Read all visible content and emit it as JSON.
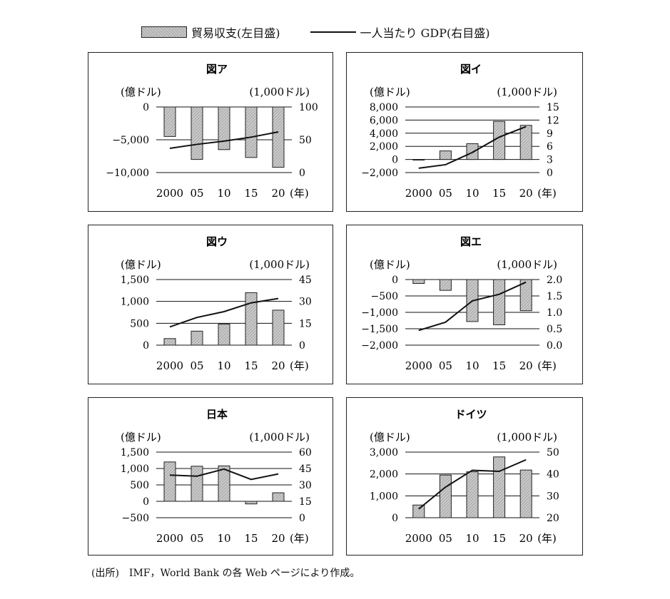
{
  "legend": {
    "bar_label": "貿易収支(左目盛)",
    "line_label": "一人当たり GDP(右目盛)"
  },
  "footnote": "(出所)　IMF，World Bank の各 Web ページにより作成。",
  "colors": {
    "bar_fill": "#c9c9c9",
    "line": "#111111",
    "grid": "#111111"
  },
  "chart_data": [
    {
      "type": "bar",
      "title": "図ア",
      "ylabel": "(億ドル)",
      "y2label": "(1,000ドル)",
      "xunit": "(年)",
      "categories": [
        "2000",
        "05",
        "10",
        "15",
        "20"
      ],
      "ylim": [
        -10000,
        0
      ],
      "yticks": [
        "0",
        "−5,000",
        "−10,000"
      ],
      "ytick_values": [
        0,
        -5000,
        -10000
      ],
      "y2lim": [
        0,
        100
      ],
      "y2ticks": [
        "100",
        "50",
        "0"
      ],
      "y2tick_values": [
        100,
        50,
        0
      ],
      "series": [
        {
          "name": "貿易収支(左目盛)",
          "kind": "bar",
          "axis": "left",
          "values": [
            -4500,
            -8000,
            -6500,
            -7700,
            -9200
          ]
        },
        {
          "name": "一人当たり GDP(右目盛)",
          "kind": "line",
          "axis": "right",
          "values": [
            37,
            43,
            48,
            54,
            62
          ]
        }
      ]
    },
    {
      "type": "bar",
      "title": "図イ",
      "ylabel": "(億ドル)",
      "y2label": "(1,000ドル)",
      "xunit": "(年)",
      "categories": [
        "2000",
        "05",
        "10",
        "15",
        "20"
      ],
      "ylim": [
        -2000,
        8000
      ],
      "yticks": [
        "8,000",
        "6,000",
        "4,000",
        "2,000",
        "0",
        "−2,000"
      ],
      "ytick_values": [
        8000,
        6000,
        4000,
        2000,
        0,
        -2000
      ],
      "y2lim": [
        0,
        15
      ],
      "y2ticks": [
        "15",
        "12",
        "9",
        "6",
        "3",
        "0"
      ],
      "y2tick_values": [
        15,
        12,
        9,
        6,
        3,
        0
      ],
      "series": [
        {
          "name": "貿易収支(左目盛)",
          "kind": "bar",
          "axis": "left",
          "values": [
            -100,
            1300,
            2400,
            5800,
            5200
          ]
        },
        {
          "name": "一人当たり GDP(右目盛)",
          "kind": "line",
          "axis": "right",
          "values": [
            1.0,
            1.8,
            4.6,
            8.1,
            10.5
          ]
        }
      ]
    },
    {
      "type": "bar",
      "title": "図ウ",
      "ylabel": "(億ドル)",
      "y2label": "(1,000ドル)",
      "xunit": "(年)",
      "categories": [
        "2000",
        "05",
        "10",
        "15",
        "20"
      ],
      "ylim": [
        0,
        1500
      ],
      "yticks": [
        "1,500",
        "1,000",
        "500",
        "0"
      ],
      "ytick_values": [
        1500,
        1000,
        500,
        0
      ],
      "y2lim": [
        0,
        45
      ],
      "y2ticks": [
        "45",
        "30",
        "15",
        "0"
      ],
      "y2tick_values": [
        45,
        30,
        15,
        0
      ],
      "series": [
        {
          "name": "貿易収支(左目盛)",
          "kind": "bar",
          "axis": "left",
          "values": [
            150,
            320,
            480,
            1200,
            800
          ]
        },
        {
          "name": "一人当たり GDP(右目盛)",
          "kind": "line",
          "axis": "right",
          "values": [
            12.5,
            19,
            23,
            29,
            32
          ]
        }
      ]
    },
    {
      "type": "bar",
      "title": "図エ",
      "ylabel": "(億ドル)",
      "y2label": "(1,000ドル)",
      "xunit": "(年)",
      "categories": [
        "2000",
        "05",
        "10",
        "15",
        "20"
      ],
      "ylim": [
        -2000,
        0
      ],
      "yticks": [
        "0",
        "−500",
        "−1,000",
        "−1,500",
        "−2,000"
      ],
      "ytick_values": [
        0,
        -500,
        -1000,
        -1500,
        -2000
      ],
      "y2lim": [
        0.0,
        2.0
      ],
      "y2ticks": [
        "2.0",
        "1.5",
        "1.0",
        "0.5",
        "0.0"
      ],
      "y2tick_values": [
        2.0,
        1.5,
        1.0,
        0.5,
        0.0
      ],
      "series": [
        {
          "name": "貿易収支(左目盛)",
          "kind": "bar",
          "axis": "left",
          "values": [
            -120,
            -330,
            -1280,
            -1380,
            -950
          ]
        },
        {
          "name": "一人当たり GDP(右目盛)",
          "kind": "line",
          "axis": "right",
          "values": [
            0.45,
            0.7,
            1.35,
            1.55,
            1.92
          ]
        }
      ]
    },
    {
      "type": "bar",
      "title": "日本",
      "ylabel": "(億ドル)",
      "y2label": "(1,000ドル)",
      "xunit": "(年)",
      "categories": [
        "2000",
        "05",
        "10",
        "15",
        "20"
      ],
      "ylim": [
        -500,
        1500
      ],
      "yticks": [
        "1,500",
        "1,000",
        "500",
        "0",
        "−500"
      ],
      "ytick_values": [
        1500,
        1000,
        500,
        0,
        -500
      ],
      "y2lim": [
        0,
        60
      ],
      "y2ticks": [
        "60",
        "45",
        "30",
        "15",
        "0"
      ],
      "y2tick_values": [
        60,
        45,
        30,
        15,
        0
      ],
      "series": [
        {
          "name": "貿易収支(左目盛)",
          "kind": "bar",
          "axis": "left",
          "values": [
            1200,
            1070,
            1080,
            -80,
            260
          ]
        },
        {
          "name": "一人当たり GDP(右目盛)",
          "kind": "line",
          "axis": "right",
          "values": [
            39,
            38,
            44.5,
            35,
            40
          ]
        }
      ]
    },
    {
      "type": "bar",
      "title": "ドイツ",
      "ylabel": "(億ドル)",
      "y2label": "(1,000ドル)",
      "xunit": "(年)",
      "categories": [
        "2000",
        "05",
        "10",
        "15",
        "20"
      ],
      "ylim": [
        0,
        3000
      ],
      "yticks": [
        "3,000",
        "2,000",
        "1,000",
        "0"
      ],
      "ytick_values": [
        3000,
        2000,
        1000,
        0
      ],
      "y2lim": [
        20,
        50
      ],
      "y2ticks": [
        "50",
        "40",
        "30",
        "20"
      ],
      "y2tick_values": [
        50,
        40,
        30,
        20
      ],
      "series": [
        {
          "name": "貿易収支(左目盛)",
          "kind": "bar",
          "axis": "left",
          "values": [
            580,
            1950,
            2100,
            2780,
            2180
          ]
        },
        {
          "name": "一人当たり GDP(右目盛)",
          "kind": "line",
          "axis": "right",
          "values": [
            24,
            34,
            41.7,
            41.2,
            46.5
          ]
        }
      ]
    }
  ]
}
